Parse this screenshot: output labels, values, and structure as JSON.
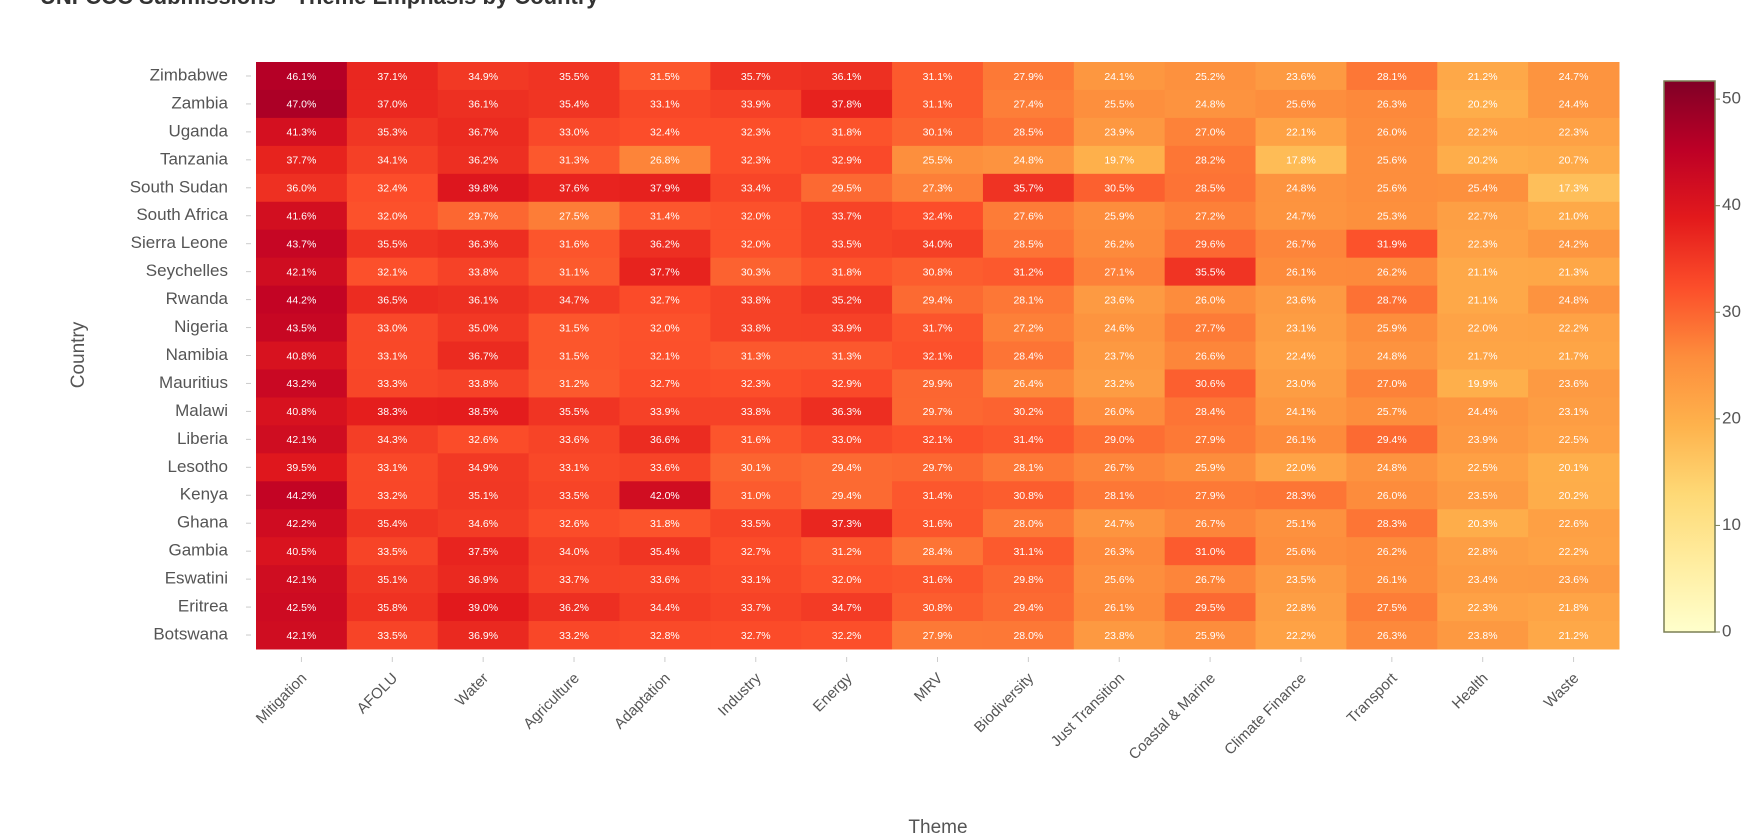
{
  "chart_data": {
    "type": "heatmap",
    "title": "UNFCCC Submissions - Theme Emphasis by Country",
    "x_label": "Theme",
    "y_label": "Country",
    "x": [
      "Mitigation",
      "AFOLU",
      "Water",
      "Agriculture",
      "Adaptation",
      "Industry",
      "Energy",
      "MRV",
      "Biodiversity",
      "Just Transition",
      "Coastal & Marine",
      "Climate Finance",
      "Transport",
      "Health",
      "Waste"
    ],
    "y": [
      "Zimbabwe",
      "Zambia",
      "Uganda",
      "Tanzania",
      "South Sudan",
      "South Africa",
      "Sierra Leone",
      "Seychelles",
      "Rwanda",
      "Nigeria",
      "Namibia",
      "Mauritius",
      "Malawi",
      "Liberia",
      "Lesotho",
      "Kenya",
      "Ghana",
      "Gambia",
      "Eswatini",
      "Eritrea",
      "Botswana"
    ],
    "values": [
      [
        46.1,
        37.1,
        34.9,
        35.5,
        31.5,
        35.7,
        36.1,
        31.1,
        27.9,
        24.1,
        25.2,
        23.6,
        28.1,
        21.2,
        24.7
      ],
      [
        47.0,
        37.0,
        36.1,
        35.4,
        33.1,
        33.9,
        37.8,
        31.1,
        27.4,
        25.5,
        24.8,
        25.6,
        26.3,
        20.2,
        24.4
      ],
      [
        41.3,
        35.3,
        36.7,
        33.0,
        32.4,
        32.3,
        31.8,
        30.1,
        28.5,
        23.9,
        27.0,
        22.1,
        26.0,
        22.2,
        22.3
      ],
      [
        37.7,
        34.1,
        36.2,
        31.3,
        26.8,
        32.3,
        32.9,
        25.5,
        24.8,
        19.7,
        28.2,
        17.8,
        25.6,
        20.2,
        20.7
      ],
      [
        36.0,
        32.4,
        39.8,
        37.6,
        37.9,
        33.4,
        29.5,
        27.3,
        35.7,
        30.5,
        28.5,
        24.8,
        25.6,
        25.4,
        17.3
      ],
      [
        41.6,
        32.0,
        29.7,
        27.5,
        31.4,
        32.0,
        33.7,
        32.4,
        27.6,
        25.9,
        27.2,
        24.7,
        25.3,
        22.7,
        21.0
      ],
      [
        43.7,
        35.5,
        36.3,
        31.6,
        36.2,
        32.0,
        33.5,
        34.0,
        28.5,
        26.2,
        29.6,
        26.7,
        31.9,
        22.3,
        24.2
      ],
      [
        42.1,
        32.1,
        33.8,
        31.1,
        37.7,
        30.3,
        31.8,
        30.8,
        31.2,
        27.1,
        35.5,
        26.1,
        26.2,
        21.1,
        21.3
      ],
      [
        44.2,
        36.5,
        36.1,
        34.7,
        32.7,
        33.8,
        35.2,
        29.4,
        28.1,
        23.6,
        26.0,
        23.6,
        28.7,
        21.1,
        24.8
      ],
      [
        43.5,
        33.0,
        35.0,
        31.5,
        32.0,
        33.8,
        33.9,
        31.7,
        27.2,
        24.6,
        27.7,
        23.1,
        25.9,
        22.0,
        22.2
      ],
      [
        40.8,
        33.1,
        36.7,
        31.5,
        32.1,
        31.3,
        31.3,
        32.1,
        28.4,
        23.7,
        26.6,
        22.4,
        24.8,
        21.7,
        21.7
      ],
      [
        43.2,
        33.3,
        33.8,
        31.2,
        32.7,
        32.3,
        32.9,
        29.9,
        26.4,
        23.2,
        30.6,
        23.0,
        27.0,
        19.9,
        23.6
      ],
      [
        40.8,
        38.3,
        38.5,
        35.5,
        33.9,
        33.8,
        36.3,
        29.7,
        30.2,
        26.0,
        28.4,
        24.1,
        25.7,
        24.4,
        23.1
      ],
      [
        42.1,
        34.3,
        32.6,
        33.6,
        36.6,
        31.6,
        33.0,
        32.1,
        31.4,
        29.0,
        27.9,
        26.1,
        29.4,
        23.9,
        22.5
      ],
      [
        39.5,
        33.1,
        34.9,
        33.1,
        33.6,
        30.1,
        29.4,
        29.7,
        28.1,
        26.7,
        25.9,
        22.0,
        24.8,
        22.5,
        20.1
      ],
      [
        44.2,
        33.2,
        35.1,
        33.5,
        42.0,
        31.0,
        29.4,
        31.4,
        30.8,
        28.1,
        27.9,
        28.3,
        26.0,
        23.5,
        20.2
      ],
      [
        42.2,
        35.4,
        34.6,
        32.6,
        31.8,
        33.5,
        37.3,
        31.6,
        28.0,
        24.7,
        26.7,
        25.1,
        28.3,
        20.3,
        22.6
      ],
      [
        40.5,
        33.5,
        37.5,
        34.0,
        35.4,
        32.7,
        31.2,
        28.4,
        31.1,
        26.3,
        31.0,
        25.6,
        26.2,
        22.8,
        22.2
      ],
      [
        42.1,
        35.1,
        36.9,
        33.7,
        33.6,
        33.1,
        32.0,
        31.6,
        29.8,
        25.6,
        26.7,
        23.5,
        26.1,
        23.4,
        23.6
      ],
      [
        42.5,
        35.8,
        39.0,
        36.2,
        34.4,
        33.7,
        34.7,
        30.8,
        29.4,
        26.1,
        29.5,
        22.8,
        27.5,
        22.3,
        21.8
      ],
      [
        42.1,
        33.5,
        36.9,
        33.2,
        32.8,
        32.7,
        32.2,
        27.9,
        28.0,
        23.8,
        25.9,
        22.2,
        26.3,
        23.8,
        21.2
      ]
    ],
    "value_labels": [
      [
        "46.1%",
        "37.1%",
        "34.9%",
        "35.5%",
        "31.5%",
        "35.7%",
        "36.1%",
        "31.1%",
        "27.9%",
        "24.1%",
        "25.2%",
        "23.6%",
        "28.1%",
        "21.2%",
        "24.7%"
      ],
      [
        "47.0%",
        "37.0%",
        "36.1%",
        "35.4%",
        "33.1%",
        "33.9%",
        "37.8%",
        "31.1%",
        "27.4%",
        "25.5%",
        "24.8%",
        "25.6%",
        "26.3%",
        "20.2%",
        "24.4%"
      ],
      [
        "41.3%",
        "35.3%",
        "36.7%",
        "33.0%",
        "32.4%",
        "32.3%",
        "31.8%",
        "30.1%",
        "28.5%",
        "23.9%",
        "27.0%",
        "22.1%",
        "26.0%",
        "22.2%",
        "22.3%"
      ],
      [
        "37.7%",
        "34.1%",
        "36.2%",
        "31.3%",
        "26.8%",
        "32.3%",
        "32.9%",
        "25.5%",
        "24.8%",
        "19.7%",
        "28.2%",
        "17.8%",
        "25.6%",
        "20.2%",
        "20.7%"
      ],
      [
        "36.0%",
        "32.4%",
        "39.8%",
        "37.6%",
        "37.9%",
        "33.4%",
        "29.5%",
        "27.3%",
        "35.7%",
        "30.5%",
        "28.5%",
        "24.8%",
        "25.6%",
        "25.4%",
        "17.3%"
      ],
      [
        "41.6%",
        "32.0%",
        "29.7%",
        "27.5%",
        "31.4%",
        "32.0%",
        "33.7%",
        "32.4%",
        "27.6%",
        "25.9%",
        "27.2%",
        "24.7%",
        "25.3%",
        "22.7%",
        "21.0%"
      ],
      [
        "43.7%",
        "35.5%",
        "36.3%",
        "31.6%",
        "36.2%",
        "32.0%",
        "33.5%",
        "34.0%",
        "28.5%",
        "26.2%",
        "29.6%",
        "26.7%",
        "31.9%",
        "22.3%",
        "24.2%"
      ],
      [
        "42.1%",
        "32.1%",
        "33.8%",
        "31.1%",
        "37.7%",
        "30.3%",
        "31.8%",
        "30.8%",
        "31.2%",
        "27.1%",
        "35.5%",
        "26.1%",
        "26.2%",
        "21.1%",
        "21.3%"
      ],
      [
        "44.2%",
        "36.5%",
        "36.1%",
        "34.7%",
        "32.7%",
        "33.8%",
        "35.2%",
        "29.4%",
        "28.1%",
        "23.6%",
        "26.0%",
        "23.6%",
        "28.7%",
        "21.1%",
        "24.8%"
      ],
      [
        "43.5%",
        "33.0%",
        "35.0%",
        "31.5%",
        "32.0%",
        "33.8%",
        "33.9%",
        "31.7%",
        "27.2%",
        "24.6%",
        "27.7%",
        "23.1%",
        "25.9%",
        "22.0%",
        "22.2%"
      ],
      [
        "40.8%",
        "33.1%",
        "36.7%",
        "31.5%",
        "32.1%",
        "31.3%",
        "31.3%",
        "32.1%",
        "28.4%",
        "23.7%",
        "26.6%",
        "22.4%",
        "24.8%",
        "21.7%",
        "21.7%"
      ],
      [
        "43.2%",
        "33.3%",
        "33.8%",
        "31.2%",
        "32.7%",
        "32.3%",
        "32.9%",
        "29.9%",
        "26.4%",
        "23.2%",
        "30.6%",
        "23.0%",
        "27.0%",
        "19.9%",
        "23.6%"
      ],
      [
        "40.8%",
        "38.3%",
        "38.5%",
        "35.5%",
        "33.9%",
        "33.8%",
        "36.3%",
        "29.7%",
        "30.2%",
        "26.0%",
        "28.4%",
        "24.1%",
        "25.7%",
        "24.4%",
        "23.1%"
      ],
      [
        "42.1%",
        "34.3%",
        "32.6%",
        "33.6%",
        "36.6%",
        "31.6%",
        "33.0%",
        "32.1%",
        "31.4%",
        "29.0%",
        "27.9%",
        "26.1%",
        "29.4%",
        "23.9%",
        "22.5%"
      ],
      [
        "39.5%",
        "33.1%",
        "34.9%",
        "33.1%",
        "33.6%",
        "30.1%",
        "29.4%",
        "29.7%",
        "28.1%",
        "26.7%",
        "25.9%",
        "22.0%",
        "24.8%",
        "22.5%",
        "20.1%"
      ],
      [
        "44.2%",
        "33.2%",
        "35.1%",
        "33.5%",
        "42.0%",
        "31.0%",
        "29.4%",
        "31.4%",
        "30.8%",
        "28.1%",
        "27.9%",
        "28.3%",
        "26.0%",
        "23.5%",
        "20.2%"
      ],
      [
        "42.2%",
        "35.4%",
        "34.6%",
        "32.6%",
        "31.8%",
        "33.5%",
        "37.3%",
        "31.6%",
        "28.0%",
        "24.7%",
        "26.7%",
        "25.1%",
        "28.3%",
        "20.3%",
        "22.6%"
      ],
      [
        "40.5%",
        "33.5%",
        "37.5%",
        "34.0%",
        "35.4%",
        "32.7%",
        "31.2%",
        "28.4%",
        "31.1%",
        "26.3%",
        "31.0%",
        "25.6%",
        "26.2%",
        "22.8%",
        "22.2%"
      ],
      [
        "42.1%",
        "35.1%",
        "36.9%",
        "33.7%",
        "33.6%",
        "33.1%",
        "32.0%",
        "31.6%",
        "29.8%",
        "25.6%",
        "26.7%",
        "23.5%",
        "26.1%",
        "23.4%",
        "23.6%"
      ],
      [
        "42.5%",
        "35.8%",
        "39.0%",
        "36.2%",
        "34.4%",
        "33.7%",
        "34.7%",
        "30.8%",
        "29.4%",
        "26.1%",
        "29.5%",
        "22.8%",
        "27.5%",
        "22.3%",
        "21.8%"
      ],
      [
        "42.1%",
        "33.5%",
        "36.9%",
        "33.2%",
        "32.8%",
        "32.7%",
        "32.2%",
        "27.9%",
        "28.0%",
        "23.8%",
        "25.9%",
        "22.2%",
        "26.3%",
        "23.8%",
        "21.2%"
      ]
    ],
    "colorscale": [
      "#ffffcc",
      "#ffeda0",
      "#fed976",
      "#feb24c",
      "#fd8d3c",
      "#fc4e2a",
      "#e31a1c",
      "#bd0026",
      "#800026"
    ],
    "zlim": [
      0,
      51.7
    ],
    "zticks": [
      0,
      10,
      20,
      30,
      40,
      50
    ]
  }
}
